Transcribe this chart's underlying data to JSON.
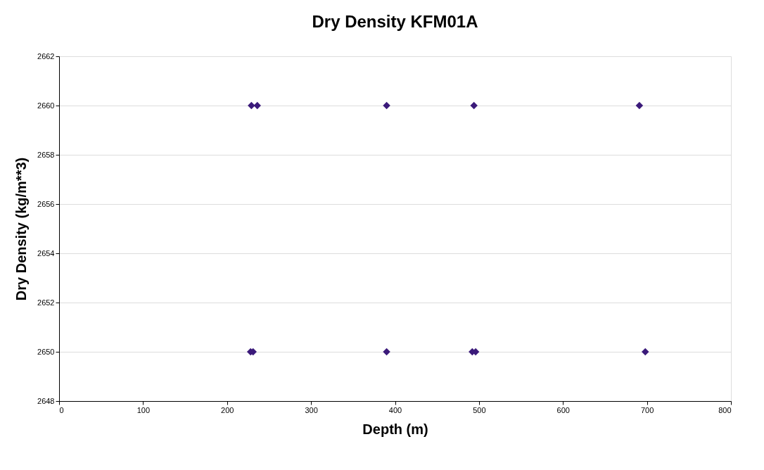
{
  "chart_data": {
    "type": "scatter",
    "title": "Dry Density KFM01A",
    "xlabel": "Depth (m)",
    "ylabel": "Dry Density (kg/m**3)",
    "x": [
      229,
      236,
      390,
      494,
      691,
      228,
      231,
      390,
      492,
      496,
      698
    ],
    "values": [
      2660,
      2660,
      2660,
      2660,
      2660,
      2650,
      2650,
      2650,
      2650,
      2650,
      2650
    ],
    "color": "#3b1a7a",
    "marker": "diamond",
    "xlim": [
      0,
      800
    ],
    "xticks": [
      0,
      100,
      200,
      300,
      400,
      500,
      600,
      700,
      800
    ],
    "ylim": [
      2648,
      2662
    ],
    "yticks": [
      2648,
      2650,
      2652,
      2654,
      2656,
      2658,
      2660,
      2662
    ],
    "grid": "y"
  }
}
